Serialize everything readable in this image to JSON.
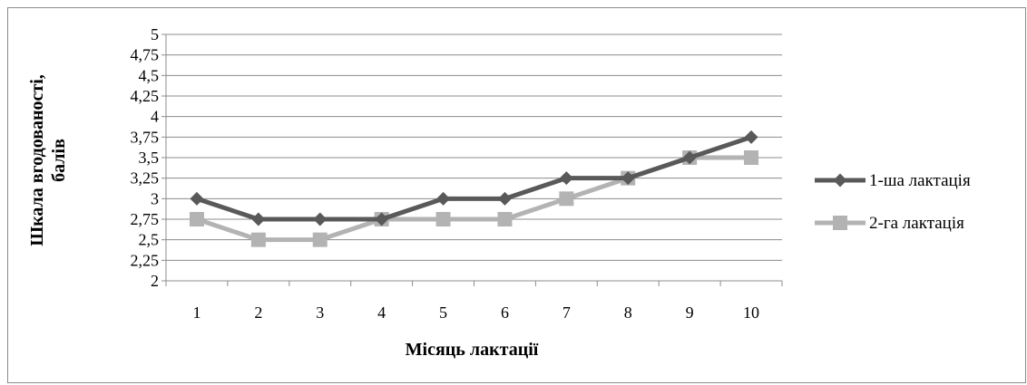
{
  "chart_data": {
    "type": "line",
    "categories": [
      "1",
      "2",
      "3",
      "4",
      "5",
      "6",
      "7",
      "8",
      "9",
      "10"
    ],
    "y_ticks": [
      "2",
      "2,25",
      "2,5",
      "2,75",
      "3",
      "3,25",
      "3,5",
      "3,75",
      "4",
      "4,25",
      "4,5",
      "4,75",
      "5"
    ],
    "ylim": [
      2,
      5
    ],
    "ystep": 0.25,
    "xlabel": "Місяць лактації",
    "ylabel_line1": "Шкала вгодованості,",
    "ylabel_line2": "балів",
    "grid": true,
    "legend_position": "right",
    "series": [
      {
        "name": "1-ша лактація",
        "values": [
          3,
          2.75,
          2.75,
          2.75,
          3,
          3,
          3.25,
          3.25,
          3.5,
          3.75
        ],
        "color": "#595959",
        "marker": "diamond"
      },
      {
        "name": "2-га лактація",
        "values": [
          2.75,
          2.5,
          2.5,
          2.75,
          2.75,
          2.75,
          3,
          3.25,
          3.5,
          3.5
        ],
        "color": "#b3b3b3",
        "marker": "square"
      }
    ]
  }
}
